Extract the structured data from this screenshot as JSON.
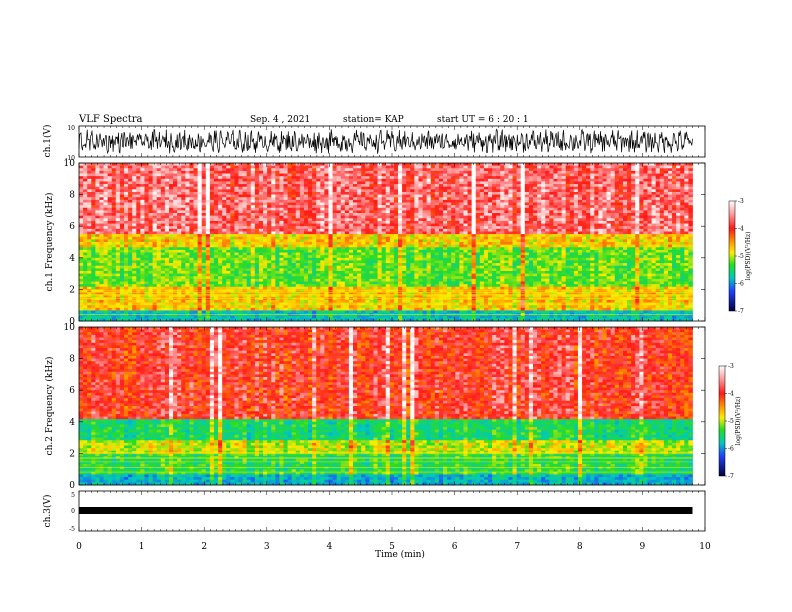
{
  "header": {
    "title": "VLF Spectra",
    "date": "Sep. 4 , 2021",
    "station": "station= KAP",
    "start": "start UT = 6 : 20 : 1"
  },
  "chart_data": [
    {
      "type": "line",
      "title": "",
      "ylabel": "ch.1(V)",
      "ylim": [
        -10,
        10
      ],
      "yticks": [
        "10",
        "-10"
      ],
      "xlim": [
        0,
        10
      ],
      "description_series": "noisy waveform around 0 V"
    },
    {
      "type": "heatmap",
      "ylabel": "ch.1 Frequency (kHz)",
      "ylim": [
        0,
        10
      ],
      "yticks": [
        "0",
        "2",
        "4",
        "6",
        "8",
        "10"
      ],
      "xlim": [
        0,
        10
      ],
      "colorbar": {
        "label": "log(PSD)(V²/Hz)",
        "range": [
          -7,
          -3
        ],
        "ticks": [
          "-3",
          "-4",
          "-5",
          "-6",
          "-7"
        ]
      },
      "bands": [
        {
          "from": 0,
          "to": 0.6,
          "level": -5.2
        },
        {
          "from": 0.6,
          "to": 2.2,
          "level": -4.2
        },
        {
          "from": 2.2,
          "to": 4.6,
          "level": -4.6
        },
        {
          "from": 4.6,
          "to": 5.5,
          "level": -4.2
        },
        {
          "from": 5.5,
          "to": 10,
          "level": -3.4
        }
      ]
    },
    {
      "type": "heatmap",
      "ylabel": "ch.2 Frequency (kHz)",
      "ylim": [
        0,
        10
      ],
      "yticks": [
        "0",
        "2",
        "4",
        "6",
        "8",
        "10"
      ],
      "xlim": [
        0,
        10
      ],
      "colorbar": {
        "label": "log(PSD)(V²/Hz)",
        "range": [
          -7,
          -3
        ],
        "ticks": [
          "-3",
          "-4",
          "-5",
          "-6",
          "-7"
        ]
      },
      "bands": [
        {
          "from": 0,
          "to": 0.6,
          "level": -5.3
        },
        {
          "from": 0.6,
          "to": 2.0,
          "level": -4.8
        },
        {
          "from": 2.0,
          "to": 2.8,
          "level": -4.4
        },
        {
          "from": 2.8,
          "to": 4.2,
          "level": -4.9
        },
        {
          "from": 4.2,
          "to": 10,
          "level": -3.6
        }
      ]
    },
    {
      "type": "line",
      "ylabel": "ch.3(V)",
      "ylim": [
        -5,
        5
      ],
      "yticks": [
        "5",
        "0",
        "-5"
      ],
      "xlim": [
        0,
        10
      ],
      "xticks": [
        "0",
        "1",
        "2",
        "3",
        "4",
        "5",
        "6",
        "7",
        "8",
        "9",
        "10"
      ],
      "xlabel": "Time (min)",
      "data_end": 9.8
    }
  ]
}
